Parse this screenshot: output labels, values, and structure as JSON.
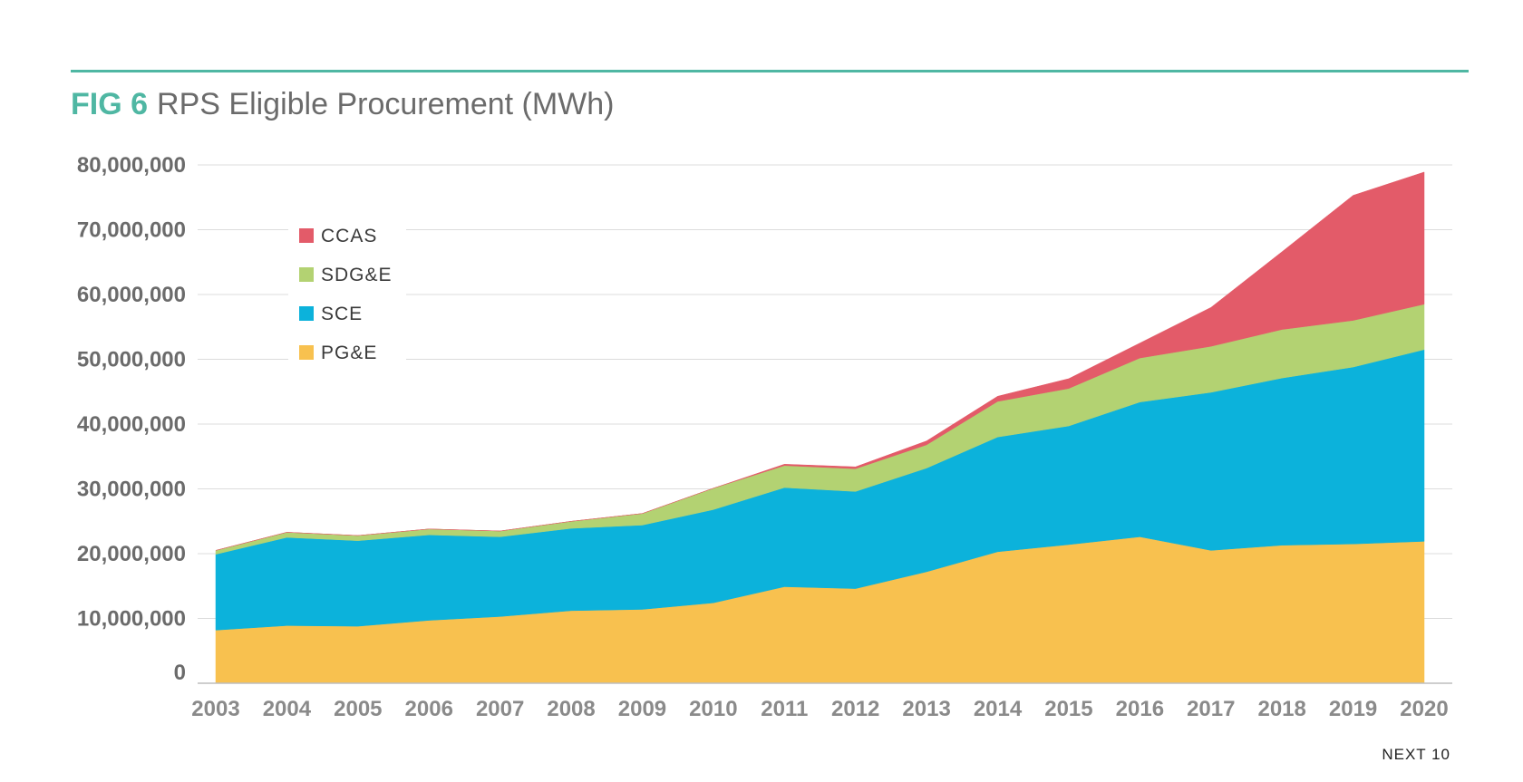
{
  "header": {
    "fig_label": "FIG 6",
    "title": "RPS Eligible Procurement (MWh)"
  },
  "footer": {
    "source": "NEXT 10"
  },
  "colors": {
    "accent": "#4fb7a3",
    "PG&E": "#f8c14f",
    "SCE": "#0cb2db",
    "SDG&E": "#b3d272",
    "CCAS": "#e35b69"
  },
  "chart_data": {
    "type": "area",
    "stacked": true,
    "title": "RPS Eligible Procurement (MWh)",
    "xlabel": "",
    "ylabel": "",
    "x": [
      "2003",
      "2004",
      "2005",
      "2006",
      "2007",
      "2008",
      "2009",
      "2010",
      "2011",
      "2012",
      "2013",
      "2014",
      "2015",
      "2016",
      "2017",
      "2018",
      "2019",
      "2020"
    ],
    "ylim": [
      0,
      80000000
    ],
    "yticks": [
      0,
      10000000,
      20000000,
      30000000,
      40000000,
      50000000,
      60000000,
      70000000,
      80000000
    ],
    "ytick_labels": [
      "0",
      "10,000,000",
      "20,000,000",
      "30,000,000",
      "40,000,000",
      "50,000,000",
      "60,000,000",
      "70,000,000",
      "80,000,000"
    ],
    "grid": true,
    "legend_position": "top-left",
    "series": [
      {
        "name": "PG&E",
        "values": [
          8200000,
          8900000,
          8800000,
          9700000,
          10300000,
          11200000,
          11400000,
          12400000,
          14900000,
          14600000,
          17200000,
          20300000,
          21400000,
          22600000,
          20500000,
          21300000,
          21500000,
          21900000
        ]
      },
      {
        "name": "SCE",
        "values": [
          11700000,
          13600000,
          13200000,
          13200000,
          12300000,
          12700000,
          13000000,
          14400000,
          15300000,
          15000000,
          16000000,
          17700000,
          18300000,
          20800000,
          24400000,
          25800000,
          27300000,
          29600000
        ]
      },
      {
        "name": "SDG&E",
        "values": [
          600000,
          800000,
          800000,
          900000,
          900000,
          1100000,
          1800000,
          3300000,
          3400000,
          3500000,
          3600000,
          5500000,
          5800000,
          6800000,
          7100000,
          7500000,
          7200000,
          7000000
        ]
      },
      {
        "name": "CCAS",
        "values": [
          0,
          0,
          0,
          0,
          0,
          0,
          0,
          0,
          200000,
          300000,
          600000,
          800000,
          1500000,
          2300000,
          6000000,
          12000000,
          19300000,
          20400000
        ]
      }
    ]
  }
}
